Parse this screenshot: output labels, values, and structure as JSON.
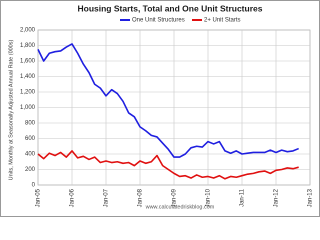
{
  "chart_data": {
    "type": "line",
    "title": "Housing Starts, Total and One Unit Structures",
    "y_label": "Units, Monthly at Seasonally Adjusted Annual Rate (000s)",
    "watermark": "www.calculatedriskblog.com",
    "x": [
      "2005-01",
      "2005-03",
      "2005-05",
      "2005-07",
      "2005-09",
      "2005-11",
      "2006-01",
      "2006-03",
      "2006-05",
      "2006-07",
      "2006-09",
      "2006-11",
      "2007-01",
      "2007-03",
      "2007-05",
      "2007-07",
      "2007-09",
      "2007-11",
      "2008-01",
      "2008-03",
      "2008-05",
      "2008-07",
      "2008-09",
      "2008-11",
      "2009-01",
      "2009-03",
      "2009-05",
      "2009-07",
      "2009-09",
      "2009-11",
      "2010-01",
      "2010-03",
      "2010-05",
      "2010-07",
      "2010-09",
      "2010-11",
      "2011-01",
      "2011-03",
      "2011-05",
      "2011-07",
      "2011-09",
      "2011-11",
      "2012-01",
      "2012-03",
      "2012-05",
      "2012-07",
      "2012-09"
    ],
    "series": [
      {
        "name": "One Unit Structures",
        "color": "#1f1fe0",
        "values": [
          1750,
          1600,
          1700,
          1720,
          1730,
          1780,
          1820,
          1700,
          1560,
          1450,
          1300,
          1250,
          1150,
          1230,
          1180,
          1080,
          930,
          880,
          750,
          700,
          640,
          620,
          540,
          460,
          360,
          360,
          400,
          480,
          500,
          490,
          560,
          530,
          560,
          440,
          410,
          440,
          400,
          410,
          420,
          420,
          420,
          450,
          420,
          450,
          430,
          440,
          470
        ]
      },
      {
        "name": "2+ Unit Starts",
        "color": "#e01010",
        "values": [
          400,
          340,
          410,
          380,
          420,
          360,
          440,
          350,
          370,
          330,
          360,
          290,
          310,
          290,
          300,
          280,
          290,
          250,
          310,
          280,
          300,
          380,
          250,
          200,
          150,
          110,
          120,
          90,
          130,
          100,
          110,
          90,
          120,
          80,
          110,
          100,
          120,
          140,
          150,
          170,
          180,
          150,
          190,
          200,
          220,
          210,
          230
        ]
      }
    ],
    "xlim": [
      "2005-01",
      "2013-01"
    ],
    "xticks": [
      {
        "value": "2005-01",
        "label": "Jan-05"
      },
      {
        "value": "2006-01",
        "label": "Jan-06"
      },
      {
        "value": "2007-01",
        "label": "Jan-07"
      },
      {
        "value": "2008-01",
        "label": "Jan-08"
      },
      {
        "value": "2009-01",
        "label": "Jan-09"
      },
      {
        "value": "2010-01",
        "label": "Jan-10"
      },
      {
        "value": "2011-01",
        "label": "Jan-11"
      },
      {
        "value": "2012-01",
        "label": "Jan-12"
      },
      {
        "value": "2013-01",
        "label": "Jan-13"
      }
    ],
    "ylim": [
      0,
      2000
    ],
    "yticks": [
      0,
      200,
      400,
      600,
      800,
      {
        "value": 1000,
        "label": "1,000"
      },
      {
        "value": 1200,
        "label": "1,200"
      },
      {
        "value": 1400,
        "label": "1,400"
      },
      {
        "value": 1600,
        "label": "1,600"
      },
      {
        "value": 1800,
        "label": "1,800"
      },
      {
        "value": 2000,
        "label": "2,000"
      }
    ],
    "grid": true
  }
}
